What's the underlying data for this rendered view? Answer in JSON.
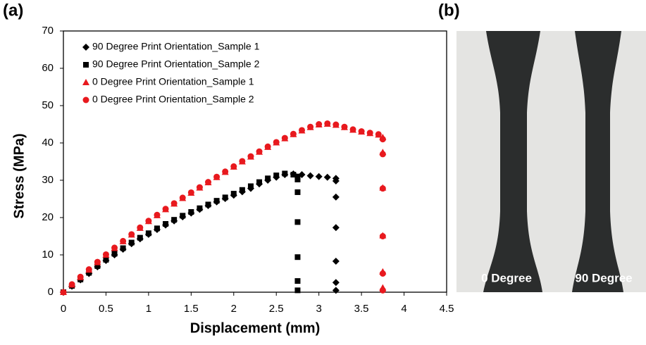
{
  "panel_a_label": "(a)",
  "chart_data": {
    "type": "scatter",
    "x_label": "Displacement (mm)",
    "y_label": "Stress (MPa)",
    "xlim": [
      0,
      4.5
    ],
    "xticks": [
      0,
      0.5,
      1,
      1.5,
      2,
      2.5,
      3,
      3.5,
      4,
      4.5
    ],
    "ylim": [
      0,
      70
    ],
    "yticks": [
      0,
      10,
      20,
      30,
      40,
      50,
      60,
      70
    ],
    "grid": false,
    "legend": "upper left",
    "series": [
      {
        "name": "90 Degree Print Orientation_Sample 1",
        "color": "#000000",
        "marker": "diamond",
        "x": [
          0,
          0.1,
          0.2,
          0.3,
          0.4,
          0.5,
          0.6,
          0.7,
          0.8,
          0.9,
          1,
          1.1,
          1.2,
          1.3,
          1.4,
          1.5,
          1.6,
          1.7,
          1.8,
          1.9,
          2,
          2.1,
          2.2,
          2.3,
          2.4,
          2.5,
          2.6,
          2.7,
          2.8,
          2.9,
          3,
          3.1,
          3.2,
          3.2,
          3.2,
          3.2,
          3.2,
          3.2,
          3.2
        ],
        "values": [
          0,
          1.6,
          3.3,
          5,
          6.8,
          8.5,
          10,
          11.5,
          13,
          14.3,
          15.5,
          16.8,
          18,
          19.1,
          20.2,
          21.2,
          22.2,
          23.2,
          24.2,
          25.1,
          26,
          26.9,
          27.8,
          29,
          30,
          30.8,
          31.5,
          31.7,
          31.5,
          31.2,
          31,
          30.8,
          30.5,
          29.8,
          25.5,
          17.3,
          8.3,
          2.6,
          0.5
        ]
      },
      {
        "name": "90 Degree Print Orientation_Sample 2",
        "color": "#000000",
        "marker": "square",
        "x": [
          0,
          0.1,
          0.2,
          0.3,
          0.4,
          0.5,
          0.6,
          0.7,
          0.8,
          0.9,
          1,
          1.1,
          1.2,
          1.3,
          1.4,
          1.5,
          1.6,
          1.7,
          1.8,
          1.9,
          2,
          2.1,
          2.2,
          2.3,
          2.4,
          2.5,
          2.6,
          2.7,
          2.75,
          2.75,
          2.75,
          2.75,
          2.75,
          2.75,
          2.75
        ],
        "values": [
          0,
          1.7,
          3.4,
          5.2,
          7,
          8.7,
          10.3,
          11.8,
          13.3,
          14.6,
          15.8,
          17.1,
          18.3,
          19.4,
          20.5,
          21.5,
          22.5,
          23.5,
          24.5,
          25.4,
          26.4,
          27.4,
          28.4,
          29.5,
          30.5,
          31.3,
          31.8,
          31.5,
          31,
          30.2,
          26.8,
          18.8,
          9.4,
          3,
          0.5
        ]
      },
      {
        "name": "0 Degree Print Orientation_Sample 1",
        "color": "#e8191e",
        "marker": "triangle",
        "x": [
          0,
          0.1,
          0.2,
          0.3,
          0.4,
          0.5,
          0.6,
          0.7,
          0.8,
          0.9,
          1,
          1.1,
          1.2,
          1.3,
          1.4,
          1.5,
          1.6,
          1.7,
          1.8,
          1.9,
          2,
          2.1,
          2.2,
          2.3,
          2.4,
          2.5,
          2.6,
          2.7,
          2.8,
          2.9,
          3,
          3.1,
          3.2,
          3.3,
          3.4,
          3.5,
          3.6,
          3.7,
          3.75,
          3.75,
          3.75,
          3.75,
          3.75,
          3.75
        ],
        "values": [
          0,
          2,
          4,
          6,
          8,
          10,
          11.8,
          13.6,
          15.4,
          17.2,
          19,
          20.6,
          22.2,
          23.7,
          25.2,
          26.6,
          28,
          29.4,
          30.8,
          32.2,
          33.6,
          35,
          36.3,
          37.6,
          38.9,
          40.1,
          41.2,
          42.3,
          43.3,
          44.2,
          44.9,
          45.1,
          44.8,
          44.2,
          43.5,
          43,
          42.6,
          42.2,
          41.5,
          37.5,
          28,
          15.2,
          5.5,
          1.2
        ]
      },
      {
        "name": "0 Degree Print Orientation_Sample 2",
        "color": "#e8191e",
        "marker": "circle",
        "x": [
          0,
          0.1,
          0.2,
          0.3,
          0.4,
          0.5,
          0.6,
          0.7,
          0.8,
          0.9,
          1,
          1.1,
          1.2,
          1.3,
          1.4,
          1.5,
          1.6,
          1.7,
          1.8,
          1.9,
          2,
          2.1,
          2.2,
          2.3,
          2.4,
          2.5,
          2.6,
          2.7,
          2.8,
          2.9,
          3,
          3.1,
          3.2,
          3.3,
          3.4,
          3.5,
          3.6,
          3.7,
          3.75,
          3.75,
          3.75,
          3.75,
          3.75,
          3.75
        ],
        "values": [
          0,
          2.1,
          4.1,
          6.1,
          8.1,
          10.1,
          11.9,
          13.7,
          15.5,
          17.3,
          19.1,
          20.7,
          22.3,
          23.8,
          25.3,
          26.7,
          28.1,
          29.5,
          30.9,
          32.3,
          33.7,
          35.1,
          36.4,
          37.7,
          39,
          40.2,
          41.3,
          42.4,
          43.4,
          44.3,
          45,
          45.2,
          44.9,
          44.3,
          43.6,
          43.1,
          42.7,
          42.3,
          41,
          37,
          27.8,
          15,
          5,
          0.5
        ]
      }
    ]
  },
  "photo": {
    "panel_label": "(b)",
    "labels": [
      "0 Degree",
      "90 Degree"
    ]
  }
}
